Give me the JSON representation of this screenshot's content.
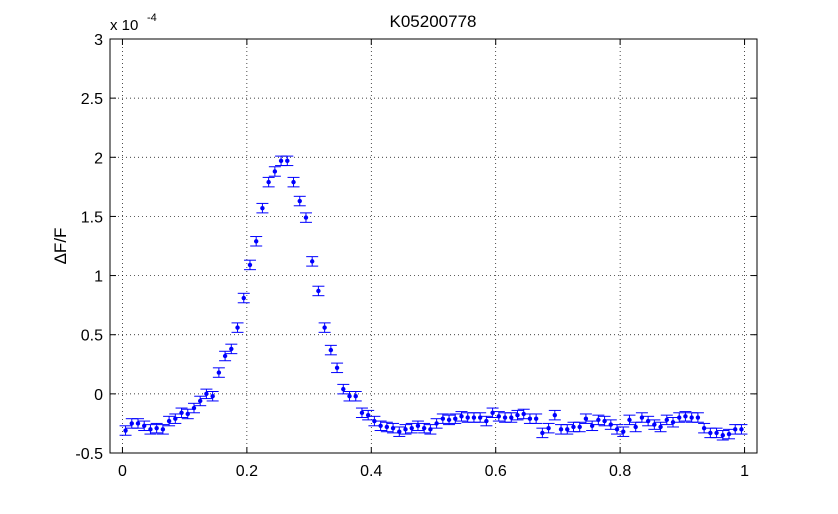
{
  "chart_data": {
    "type": "scatter",
    "title": "K05200778",
    "xlabel": "",
    "ylabel": "ΔF/F",
    "y_exponent_label": "x 10",
    "y_exponent_power": "-4",
    "xlim": [
      -0.02,
      1.02
    ],
    "ylim": [
      -0.5,
      3
    ],
    "xticks": [
      0,
      0.2,
      0.4,
      0.6,
      0.8,
      1
    ],
    "yticks": [
      -0.5,
      0,
      0.5,
      1,
      1.5,
      2,
      2.5,
      3
    ],
    "grid": true,
    "marker_color": "#0000ff",
    "series": [
      {
        "error": 0.04,
        "x": [
          0.005,
          0.015,
          0.025,
          0.035,
          0.045,
          0.055,
          0.065,
          0.075,
          0.085,
          0.095,
          0.105,
          0.115,
          0.125,
          0.135,
          0.145,
          0.155,
          0.165,
          0.175,
          0.185,
          0.195,
          0.205,
          0.215,
          0.225,
          0.235,
          0.245,
          0.255,
          0.265,
          0.275,
          0.285,
          0.295,
          0.305,
          0.315,
          0.325,
          0.335,
          0.345,
          0.355,
          0.365,
          0.375,
          0.385,
          0.395,
          0.405,
          0.415,
          0.425,
          0.435,
          0.445,
          0.455,
          0.465,
          0.475,
          0.485,
          0.495,
          0.505,
          0.515,
          0.525,
          0.535,
          0.545,
          0.555,
          0.565,
          0.575,
          0.585,
          0.595,
          0.605,
          0.615,
          0.625,
          0.635,
          0.645,
          0.655,
          0.665,
          0.675,
          0.685,
          0.695,
          0.705,
          0.715,
          0.725,
          0.735,
          0.745,
          0.755,
          0.765,
          0.775,
          0.785,
          0.795,
          0.805,
          0.815,
          0.825,
          0.835,
          0.845,
          0.855,
          0.865,
          0.875,
          0.885,
          0.895,
          0.905,
          0.915,
          0.925,
          0.935,
          0.945,
          0.955,
          0.965,
          0.975,
          0.985,
          0.995
        ],
        "y": [
          -0.31,
          -0.25,
          -0.25,
          -0.27,
          -0.3,
          -0.29,
          -0.3,
          -0.23,
          -0.21,
          -0.16,
          -0.17,
          -0.12,
          -0.06,
          0.0,
          -0.02,
          0.18,
          0.32,
          0.38,
          0.56,
          0.81,
          1.09,
          1.29,
          1.57,
          1.79,
          1.88,
          1.97,
          1.97,
          1.79,
          1.63,
          1.49,
          1.12,
          0.87,
          0.56,
          0.37,
          0.22,
          0.04,
          -0.02,
          -0.02,
          -0.16,
          -0.18,
          -0.23,
          -0.27,
          -0.28,
          -0.29,
          -0.32,
          -0.3,
          -0.29,
          -0.27,
          -0.29,
          -0.3,
          -0.25,
          -0.21,
          -0.22,
          -0.21,
          -0.19,
          -0.2,
          -0.2,
          -0.2,
          -0.23,
          -0.16,
          -0.19,
          -0.2,
          -0.2,
          -0.18,
          -0.17,
          -0.21,
          -0.21,
          -0.33,
          -0.29,
          -0.18,
          -0.3,
          -0.3,
          -0.28,
          -0.28,
          -0.21,
          -0.27,
          -0.22,
          -0.23,
          -0.26,
          -0.3,
          -0.32,
          -0.22,
          -0.28,
          -0.2,
          -0.23,
          -0.26,
          -0.28,
          -0.22,
          -0.24,
          -0.2,
          -0.19,
          -0.2,
          -0.2,
          -0.29,
          -0.33,
          -0.33,
          -0.35,
          -0.34,
          -0.3,
          -0.3
        ]
      }
    ]
  }
}
